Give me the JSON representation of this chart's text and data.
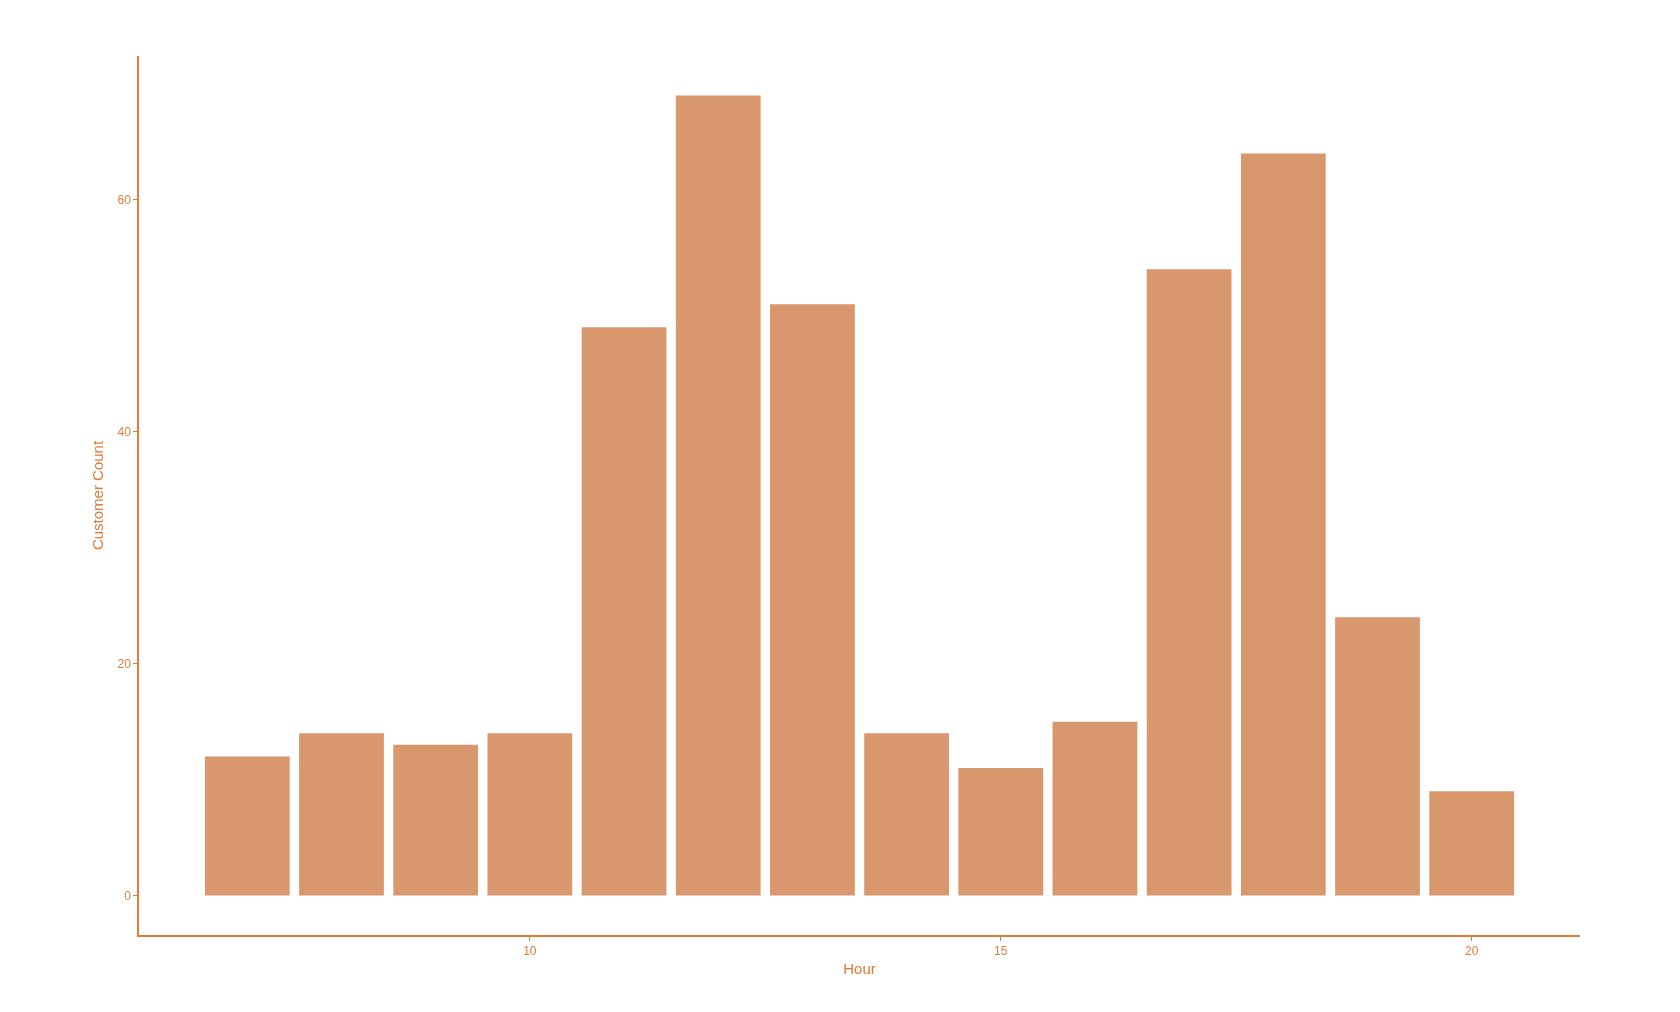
{
  "chart_data": {
    "type": "bar",
    "xlabel": "Hour",
    "ylabel": "Customer Count",
    "x": [
      7,
      8,
      9,
      10,
      11,
      12,
      13,
      14,
      15,
      16,
      17,
      18,
      19,
      20
    ],
    "values": [
      12,
      14,
      13,
      14,
      49,
      69,
      51,
      14,
      11,
      15,
      54,
      64,
      24,
      9
    ],
    "color": "#d8976c",
    "xlim": [
      5.85,
      21.15
    ],
    "xticks": [
      10,
      15,
      20
    ],
    "ylim": [
      -3.4,
      72.4
    ],
    "yticks": [
      0,
      20,
      40,
      60
    ],
    "grid": false
  }
}
